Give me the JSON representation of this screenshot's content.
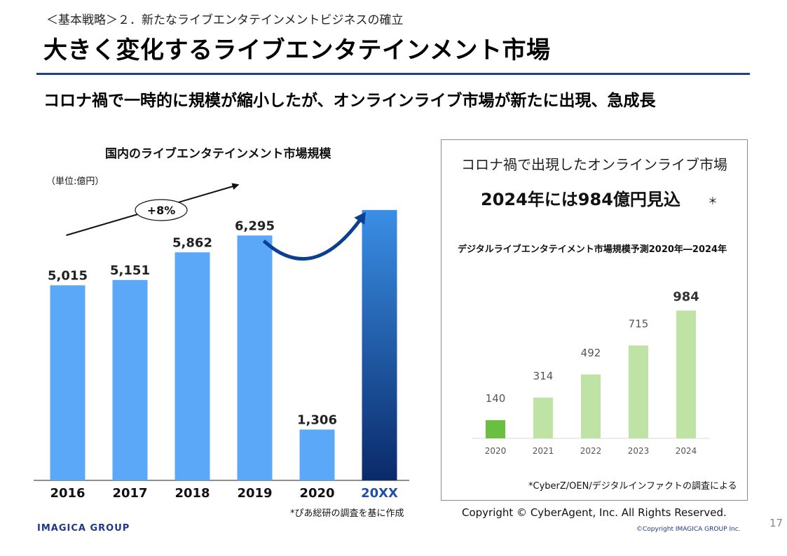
{
  "header": {
    "breadcrumb": "＜基本戦略＞２．新たなライブエンタテインメントビジネスの確立",
    "title": "大きく変化するライブエンタテインメント市場",
    "subtitle": "コロナ禍で一時的に規模が縮小したが、オンラインライブ市場が新たに出現、急成長"
  },
  "left_chart": {
    "unit": "（単位:億円）",
    "growth_label": "+8%",
    "source_note": "*ぴあ総研の調査を基に作成"
  },
  "right_panel": {
    "heading": "コロナ禍で出現したオンラインライブ市場",
    "headline": "2024年には984億円見込",
    "headline_mark": "＊",
    "source_note": "*CyberZ/OEN/デジタルインファクトの調査による"
  },
  "chart_data": [
    {
      "type": "bar",
      "title": "国内のライブエンタテインメント市場規模",
      "categories": [
        "2016",
        "2017",
        "2018",
        "2019",
        "2020",
        "20XX"
      ],
      "values": [
        5015,
        5151,
        5862,
        6295,
        1306,
        null
      ],
      "data_labels": [
        "5,015",
        "5,151",
        "5,862",
        "6,295",
        "1,306",
        ""
      ],
      "ylim": [
        0,
        7200
      ],
      "projected_value": 6950,
      "colors": {
        "bar": "#5ca8f8",
        "projected_top": "#3a8fe6",
        "projected_bottom": "#0a2a6a",
        "arrow": "#0b3f92",
        "highlight_label": "#1f4fa8"
      }
    },
    {
      "type": "bar",
      "title": "デジタルライブエンタテイメント市場規模予測2020年―2024年",
      "categories": [
        "2020",
        "2021",
        "2022",
        "2023",
        "2024"
      ],
      "values": [
        140,
        314,
        492,
        715,
        984
      ],
      "ylim": [
        0,
        1100
      ],
      "colors": {
        "first": "#6abf3f",
        "rest": "#bfe3a5"
      }
    }
  ],
  "footer": {
    "copyright_ca": "Copyright © CyberAgent, Inc. All Rights Reserved.",
    "page_number": "17",
    "logo": "IMAGICA GROUP",
    "copyright": "©Copyright IMAGICA GROUP Inc."
  }
}
